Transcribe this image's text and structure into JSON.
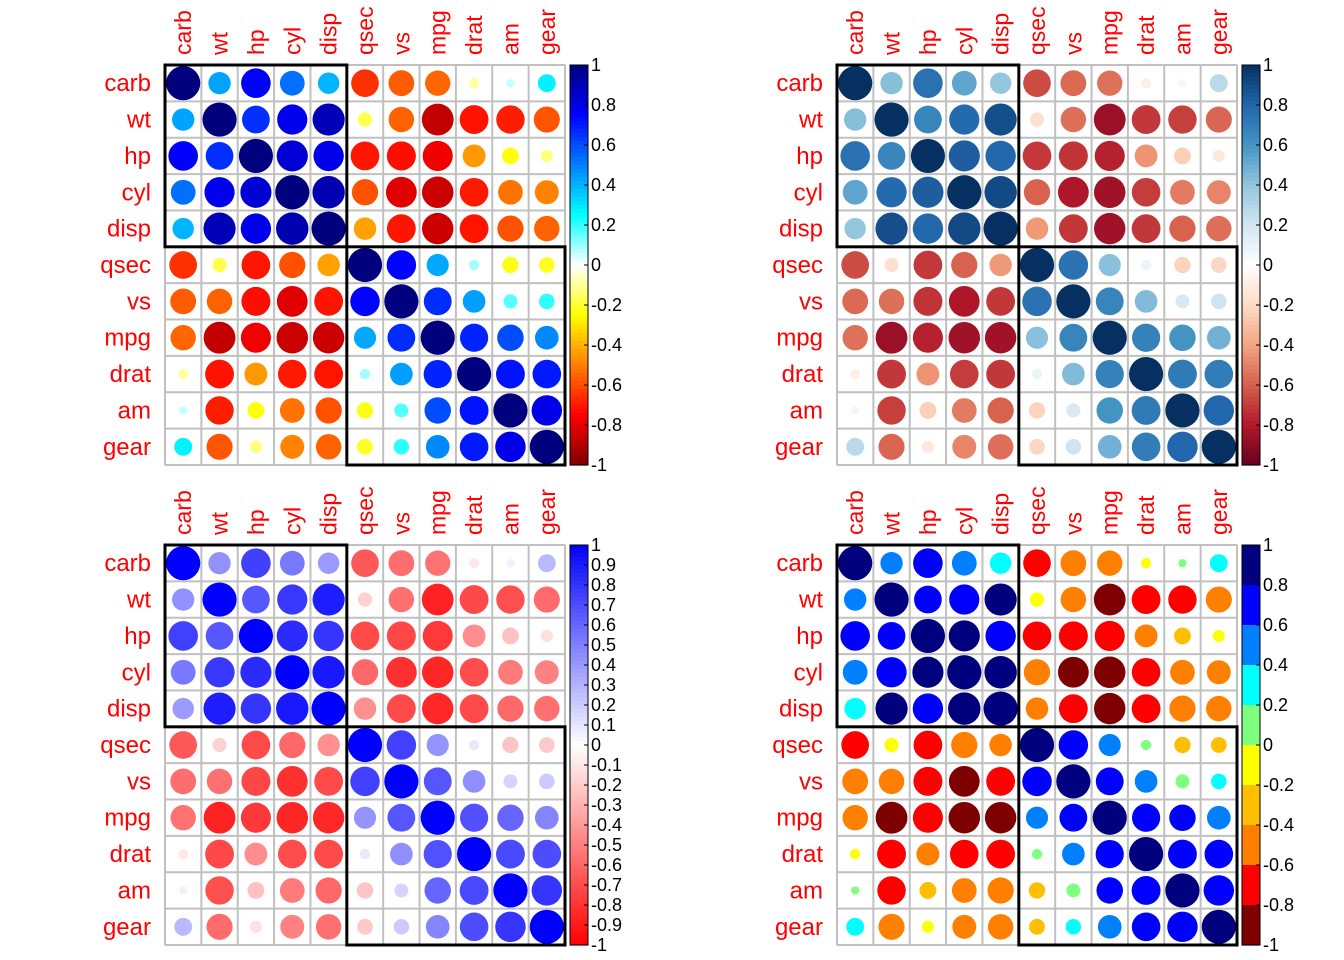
{
  "chart_data": {
    "type": "heatmap",
    "variables": [
      "carb",
      "wt",
      "hp",
      "cyl",
      "disp",
      "qsec",
      "vs",
      "mpg",
      "drat",
      "am",
      "gear"
    ],
    "clusters": [
      [
        "carb",
        "wt",
        "hp",
        "cyl",
        "disp"
      ],
      [
        "qsec",
        "vs",
        "mpg",
        "drat",
        "am",
        "gear"
      ]
    ],
    "matrix": [
      [
        1.0,
        0.428,
        0.75,
        0.527,
        0.395,
        -0.656,
        -0.57,
        -0.551,
        -0.091,
        0.058,
        0.274
      ],
      [
        0.428,
        1.0,
        0.659,
        0.782,
        0.888,
        -0.175,
        -0.555,
        -0.868,
        -0.712,
        -0.692,
        -0.583
      ],
      [
        0.75,
        0.659,
        1.0,
        0.832,
        0.791,
        -0.708,
        -0.723,
        -0.776,
        -0.449,
        -0.243,
        -0.126
      ],
      [
        0.527,
        0.782,
        0.832,
        1.0,
        0.902,
        -0.591,
        -0.811,
        -0.852,
        -0.7,
        -0.523,
        -0.493
      ],
      [
        0.395,
        0.888,
        0.791,
        0.902,
        1.0,
        -0.434,
        -0.71,
        -0.848,
        -0.71,
        -0.591,
        -0.556
      ],
      [
        -0.656,
        -0.175,
        -0.708,
        -0.591,
        -0.434,
        1.0,
        0.745,
        0.419,
        0.091,
        -0.23,
        -0.213
      ],
      [
        -0.57,
        -0.555,
        -0.723,
        -0.811,
        -0.71,
        0.745,
        1.0,
        0.664,
        0.44,
        0.168,
        0.206
      ],
      [
        -0.551,
        -0.868,
        -0.776,
        -0.852,
        -0.848,
        0.419,
        0.664,
        1.0,
        0.681,
        0.6,
        0.48
      ],
      [
        -0.091,
        -0.712,
        -0.449,
        -0.7,
        -0.71,
        0.091,
        0.44,
        0.681,
        1.0,
        0.713,
        0.7
      ],
      [
        0.058,
        -0.692,
        -0.243,
        -0.523,
        -0.591,
        -0.23,
        0.168,
        0.6,
        0.713,
        1.0,
        0.794
      ],
      [
        0.274,
        -0.583,
        -0.126,
        -0.493,
        -0.556,
        -0.213,
        0.206,
        0.48,
        0.7,
        0.794,
        1.0
      ]
    ],
    "panels": [
      {
        "palette": [
          "#7F0000",
          "#FF0000",
          "#FF7F00",
          "#FFFF00",
          "#FFFFFF",
          "#00FFFF",
          "#007FFF",
          "#0000FF",
          "#00007F"
        ],
        "discrete": false,
        "ticks": [
          "1",
          "0.8",
          "0.6",
          "0.4",
          "0.2",
          "0",
          "-0.2",
          "-0.4",
          "-0.6",
          "-0.8",
          "-1"
        ]
      },
      {
        "palette": [
          "#67001F",
          "#B2182B",
          "#D6604D",
          "#F4A582",
          "#FDDBC7",
          "#FFFFFF",
          "#D1E5F0",
          "#92C5DE",
          "#4393C3",
          "#2166AC",
          "#053061"
        ],
        "discrete": false,
        "ticks": [
          "1",
          "0.8",
          "0.6",
          "0.4",
          "0.2",
          "0",
          "-0.2",
          "-0.4",
          "-0.6",
          "-0.8",
          "-1"
        ]
      },
      {
        "palette": [
          "#FF0000",
          "#FFFFFF",
          "#0000FF"
        ],
        "discrete": false,
        "ticks": [
          "1",
          "0.9",
          "0.8",
          "0.7",
          "0.6",
          "0.5",
          "0.4",
          "0.3",
          "0.2",
          "0.1",
          "0",
          "-0.1",
          "-0.2",
          "-0.3",
          "-0.4",
          "-0.5",
          "-0.6",
          "-0.7",
          "-0.8",
          "-0.9",
          "-1"
        ]
      },
      {
        "palette": [
          "#7F0000",
          "#FF0000",
          "#FF7F00",
          "#FFBF00",
          "#FFFF00",
          "#7FFF00",
          "#7FFF7F",
          "#00FFFF",
          "#007FFF",
          "#0000FF",
          "#00007F"
        ],
        "discrete": true,
        "bins": 10,
        "ticks": [
          "1",
          "0.8",
          "0.6",
          "0.4",
          "0.2",
          "0",
          "-0.2",
          "-0.4",
          "-0.6",
          "-0.8",
          "-1"
        ]
      }
    ]
  }
}
